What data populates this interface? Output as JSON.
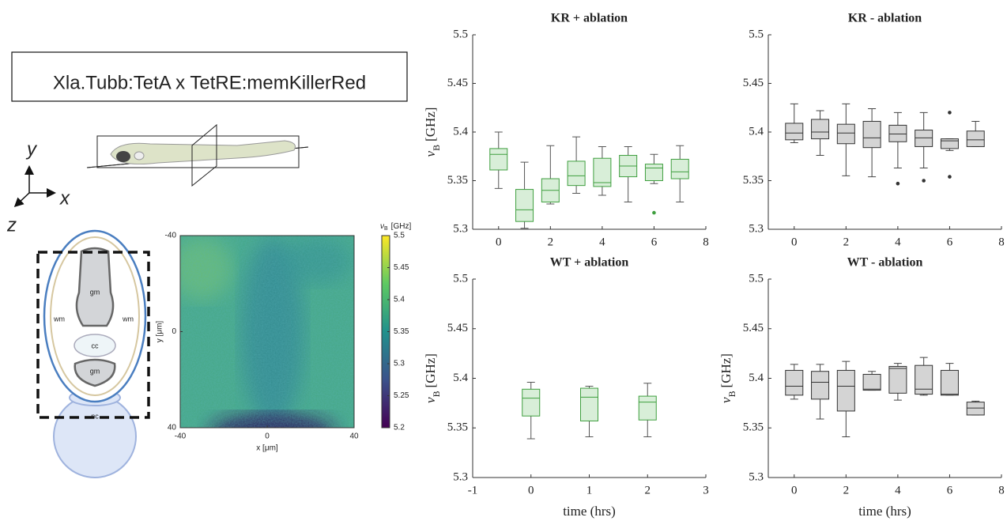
{
  "figure": {
    "construct": "Xla.Tubb:TetA x TetRE:memKillerRed",
    "triad": {
      "y": "y",
      "x": "x",
      "z": "z"
    },
    "diagram_labels": [
      "gm",
      "wm",
      "wm",
      "cc",
      "gm",
      "nc"
    ]
  },
  "chart_data": [
    {
      "type": "box",
      "title": "KR + ablation",
      "ylabel": [
        "ν",
        "B",
        "[GHz]"
      ],
      "color": "#3f9f3f",
      "fill": "#d8eed8",
      "whisker_color": "#555555",
      "xlim": [
        -1,
        8
      ],
      "xticks": [
        0,
        2,
        4,
        6,
        8
      ],
      "ylim": [
        5.3,
        5.5
      ],
      "yticks": [
        5.3,
        5.35,
        5.4,
        5.45,
        5.5
      ],
      "x": [
        0,
        1,
        2,
        3,
        4,
        5,
        6,
        7
      ],
      "whislo": [
        5.342,
        5.301,
        5.326,
        5.337,
        5.335,
        5.328,
        5.347,
        5.328
      ],
      "q1": [
        5.361,
        5.308,
        5.328,
        5.345,
        5.344,
        5.354,
        5.35,
        5.352
      ],
      "med": [
        5.377,
        5.32,
        5.34,
        5.355,
        5.348,
        5.365,
        5.363,
        5.359
      ],
      "q3": [
        5.383,
        5.341,
        5.352,
        5.37,
        5.373,
        5.376,
        5.367,
        5.372
      ],
      "whishi": [
        5.4,
        5.369,
        5.386,
        5.395,
        5.385,
        5.385,
        5.377,
        5.386
      ],
      "fliers": [
        [],
        [],
        [],
        [],
        [],
        [],
        [
          5.317
        ],
        []
      ]
    },
    {
      "type": "box",
      "title": "KR - ablation",
      "color": "#333333",
      "fill": "#d4d4d4",
      "whisker_color": "#444444",
      "xlim": [
        -1,
        8
      ],
      "xticks": [
        0,
        2,
        4,
        6,
        8
      ],
      "ylim": [
        5.3,
        5.5
      ],
      "yticks": [
        5.3,
        5.35,
        5.4,
        5.45,
        5.5
      ],
      "x": [
        0,
        1,
        2,
        3,
        4,
        5,
        6,
        7
      ],
      "whislo": [
        5.389,
        5.376,
        5.355,
        5.354,
        5.363,
        5.363,
        5.381,
        5.385
      ],
      "q1": [
        5.392,
        5.393,
        5.388,
        5.384,
        5.39,
        5.385,
        5.383,
        5.385
      ],
      "med": [
        5.399,
        5.4,
        5.399,
        5.394,
        5.398,
        5.394,
        5.391,
        5.392
      ],
      "q3": [
        5.409,
        5.413,
        5.408,
        5.411,
        5.407,
        5.402,
        5.393,
        5.401
      ],
      "whishi": [
        5.429,
        5.422,
        5.429,
        5.424,
        5.42,
        5.42,
        5.393,
        5.411
      ],
      "fliers": [
        [],
        [],
        [],
        [],
        [
          5.347
        ],
        [
          5.35
        ],
        [
          5.42,
          5.354
        ],
        []
      ]
    },
    {
      "type": "box",
      "title": "WT + ablation",
      "ylabel": [
        "ν",
        "B",
        "[GHz]"
      ],
      "xlabel": "time (hrs)",
      "color": "#3f9f3f",
      "fill": "#d8eed8",
      "whisker_color": "#555555",
      "xlim": [
        -1,
        3
      ],
      "xticks": [
        -1,
        0,
        1,
        2,
        3
      ],
      "ylim": [
        5.3,
        5.5
      ],
      "yticks": [
        5.3,
        5.35,
        5.4,
        5.45,
        5.5
      ],
      "x": [
        0,
        1,
        2
      ],
      "whislo": [
        5.339,
        5.341,
        5.341
      ],
      "q1": [
        5.362,
        5.357,
        5.358
      ],
      "med": [
        5.38,
        5.381,
        5.376
      ],
      "q3": [
        5.389,
        5.39,
        5.382
      ],
      "whishi": [
        5.396,
        5.392,
        5.395
      ],
      "fliers": [
        [],
        [],
        []
      ]
    },
    {
      "type": "box",
      "title": "WT - ablation",
      "ylabel": [
        "ν",
        "B",
        "[GHz]"
      ],
      "xlabel": "time (hrs)",
      "color": "#333333",
      "fill": "#d4d4d4",
      "whisker_color": "#444444",
      "xlim": [
        -1,
        8
      ],
      "xticks": [
        0,
        2,
        4,
        6,
        8
      ],
      "ylim": [
        5.3,
        5.5
      ],
      "yticks": [
        5.3,
        5.35,
        5.4,
        5.45,
        5.5
      ],
      "x": [
        0,
        1,
        2,
        3,
        4,
        5,
        6,
        7
      ],
      "whislo": [
        5.379,
        5.359,
        5.341,
        5.388,
        5.378,
        5.383,
        5.383,
        5.363
      ],
      "q1": [
        5.383,
        5.379,
        5.367,
        5.388,
        5.385,
        5.384,
        5.383,
        5.363
      ],
      "med": [
        5.392,
        5.396,
        5.392,
        5.389,
        5.41,
        5.389,
        5.384,
        5.37
      ],
      "q3": [
        5.408,
        5.407,
        5.408,
        5.404,
        5.412,
        5.413,
        5.408,
        5.376
      ],
      "whishi": [
        5.414,
        5.414,
        5.417,
        5.407,
        5.415,
        5.421,
        5.415,
        5.377
      ],
      "fliers": [
        [],
        [],
        [],
        [],
        [],
        [],
        [],
        []
      ]
    },
    {
      "type": "heatmap",
      "xlabel": "x [μm]",
      "ylabel": "y [μm]",
      "xlim": [
        -40,
        40
      ],
      "xticks": [
        -40,
        0,
        40
      ],
      "ylim": [
        -40,
        40
      ],
      "yticks": [
        -40,
        0,
        40
      ],
      "colorbar": {
        "label": [
          "ν",
          "B",
          "[GHz]"
        ],
        "clim": [
          5.2,
          5.5
        ],
        "ticks": [
          5.2,
          5.25,
          5.3,
          5.35,
          5.4,
          5.45,
          5.5
        ]
      }
    }
  ]
}
